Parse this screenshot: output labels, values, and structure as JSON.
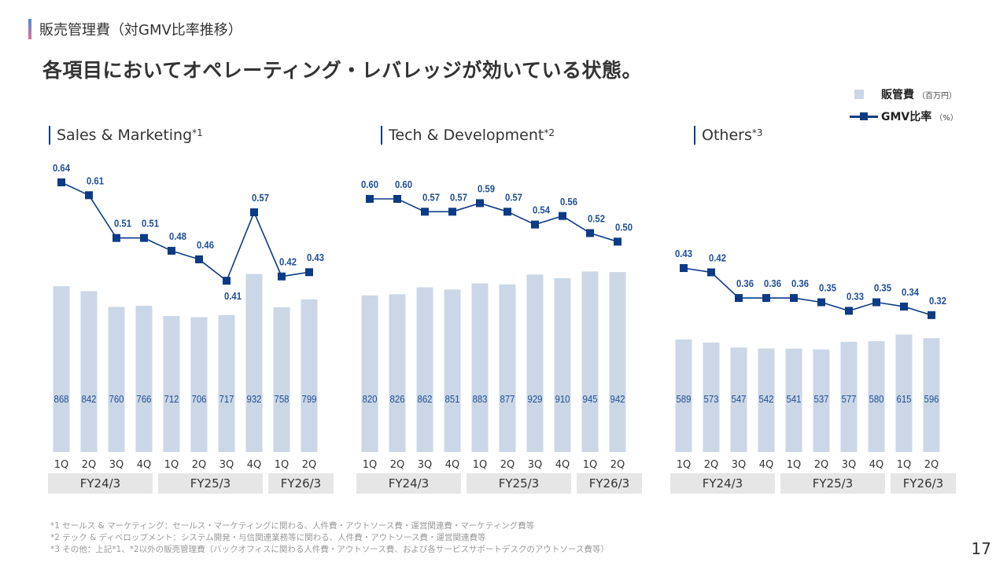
{
  "header": {
    "section_title": "販売管理費（対GMV比率推移）",
    "headline": "各項目においてオペレーティング・レバレッジが効いている状態。"
  },
  "legend": {
    "bar_label": "販管費",
    "bar_unit": "（百万円）",
    "line_label": "GMV比率",
    "line_unit": "（%）"
  },
  "colors": {
    "bar": "#cbd7e6",
    "line": "#0c3b86",
    "value_text": "#1f4e96",
    "fy_box": "#e6e6e6"
  },
  "chart_data": [
    {
      "type": "bar+line",
      "title": "Sales & Marketing",
      "footnote_mark": "*1",
      "categories": [
        "1Q",
        "2Q",
        "3Q",
        "4Q",
        "1Q",
        "2Q",
        "3Q",
        "4Q",
        "1Q",
        "2Q"
      ],
      "fiscal_groups": [
        {
          "label": "FY24/3",
          "count": 4
        },
        {
          "label": "FY25/3",
          "count": 4
        },
        {
          "label": "FY26/3",
          "count": 2
        }
      ],
      "series": [
        {
          "name": "販管費（百万円）",
          "type": "bar",
          "values": [
            868,
            842,
            760,
            766,
            712,
            706,
            717,
            932,
            758,
            799
          ]
        },
        {
          "name": "GMV比率（%）",
          "type": "line",
          "values": [
            0.64,
            0.61,
            0.51,
            0.51,
            0.48,
            0.46,
            0.41,
            0.57,
            0.42,
            0.43
          ]
        }
      ]
    },
    {
      "type": "bar+line",
      "title": "Tech & Development",
      "footnote_mark": "*2",
      "categories": [
        "1Q",
        "2Q",
        "3Q",
        "4Q",
        "1Q",
        "2Q",
        "3Q",
        "4Q",
        "1Q",
        "2Q"
      ],
      "fiscal_groups": [
        {
          "label": "FY24/3",
          "count": 4
        },
        {
          "label": "FY25/3",
          "count": 4
        },
        {
          "label": "FY26/3",
          "count": 2
        }
      ],
      "series": [
        {
          "name": "販管費（百万円）",
          "type": "bar",
          "values": [
            820,
            826,
            862,
            851,
            883,
            877,
            929,
            910,
            945,
            942
          ]
        },
        {
          "name": "GMV比率（%）",
          "type": "line",
          "values": [
            0.6,
            0.6,
            0.57,
            0.57,
            0.59,
            0.57,
            0.54,
            0.56,
            0.52,
            0.5
          ]
        }
      ]
    },
    {
      "type": "bar+line",
      "title": "Others",
      "footnote_mark": "*3",
      "categories": [
        "1Q",
        "2Q",
        "3Q",
        "4Q",
        "1Q",
        "2Q",
        "3Q",
        "4Q",
        "1Q",
        "2Q"
      ],
      "fiscal_groups": [
        {
          "label": "FY24/3",
          "count": 4
        },
        {
          "label": "FY25/3",
          "count": 4
        },
        {
          "label": "FY26/3",
          "count": 2
        }
      ],
      "series": [
        {
          "name": "販管費（百万円）",
          "type": "bar",
          "values": [
            589,
            573,
            547,
            542,
            541,
            537,
            577,
            580,
            615,
            596
          ]
        },
        {
          "name": "GMV比率（%）",
          "type": "line",
          "values": [
            0.43,
            0.42,
            0.36,
            0.36,
            0.36,
            0.35,
            0.33,
            0.35,
            0.34,
            0.32
          ]
        }
      ]
    }
  ],
  "footnotes": [
    "*1 セールス & マーケティング：セールス・マーケティングに関わる、人件費・アウトソース費・運営関連費・マーケティング費等",
    "*2 テック & ディベロップメント：システム開発・与信関連業務等に関わる、人件費・アウトソース費・運営関連費等",
    "*3 その他：上記*1、*2以外の販売管理費（バックオフィスに関わる人件費・アウトソース費、および各サービスサポートデスクのアウトソース費等）"
  ],
  "page_number": "17"
}
